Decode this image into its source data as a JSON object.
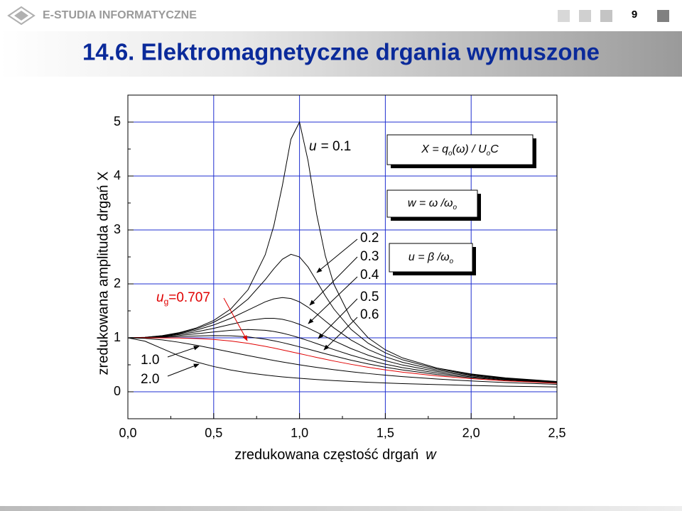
{
  "header": {
    "logo": "E-STUDIA INFORMATYCZNE",
    "page_number": "9",
    "title": "14.6. Elektromagnetyczne drgania wymuszone"
  },
  "chart_data": {
    "type": "line",
    "ylabel": "zredukowana amplituda drgań X",
    "xlabel": "zredukowana częstość drgań",
    "xlabel_symbol": "w",
    "xlim": [
      0,
      2.5
    ],
    "ylim": [
      -0.5,
      5.5
    ],
    "xticks": [
      {
        "value": 0,
        "label": "0,0"
      },
      {
        "value": 0.5,
        "label": "0,5"
      },
      {
        "value": 1,
        "label": "1,0"
      },
      {
        "value": 1.5,
        "label": "1,5"
      },
      {
        "value": 2,
        "label": "2,0"
      },
      {
        "value": 2.5,
        "label": "2,5"
      }
    ],
    "yticks": [
      0,
      1,
      2,
      3,
      4,
      5
    ],
    "xminorticks": [
      0.25,
      0.75,
      1.25,
      1.75,
      2.25
    ],
    "yminorticks": [
      -0.5,
      0.5,
      1.5,
      2.5,
      3.5,
      4.5,
      5.5
    ],
    "grid": true,
    "grid_color": "#1f2fd0",
    "x": [
      0,
      0.1,
      0.2,
      0.3,
      0.4,
      0.5,
      0.6,
      0.7,
      0.8,
      0.85,
      0.9,
      0.95,
      1.0,
      1.05,
      1.1,
      1.15,
      1.2,
      1.3,
      1.4,
      1.5,
      1.6,
      1.8,
      2.0,
      2.2,
      2.5
    ],
    "series": [
      {
        "name_prefix": "u",
        "name": "= 0.1",
        "color": "#000000",
        "values": [
          1,
          1.01,
          1.041,
          1.097,
          1.185,
          1.322,
          1.536,
          1.891,
          2.538,
          3.073,
          3.821,
          4.683,
          5.0,
          4.279,
          3.288,
          2.524,
          1.995,
          1.356,
          1.0,
          0.778,
          0.628,
          0.441,
          0.33,
          0.259,
          0.19
        ]
      },
      {
        "name": "0.2",
        "color": "#000000",
        "values": [
          1,
          1.009,
          1.038,
          1.089,
          1.169,
          1.288,
          1.463,
          1.719,
          2.076,
          2.279,
          2.457,
          2.549,
          2.5,
          2.313,
          2.051,
          1.78,
          1.536,
          1.157,
          0.9,
          0.721,
          0.593,
          0.425,
          0.322,
          0.254,
          0.187
        ]
      },
      {
        "name": "0.3",
        "color": "#000000",
        "values": [
          1,
          1.008,
          1.034,
          1.078,
          1.145,
          1.238,
          1.362,
          1.514,
          1.667,
          1.722,
          1.747,
          1.729,
          1.667,
          1.567,
          1.444,
          1.313,
          1.185,
          0.96,
          0.784,
          0.649,
          0.546,
          0.402,
          0.309,
          0.246,
          0.183
        ]
      },
      {
        "name": "0.4",
        "color": "#000000",
        "values": [
          1,
          1.007,
          1.027,
          1.063,
          1.112,
          1.176,
          1.25,
          1.32,
          1.362,
          1.362,
          1.343,
          1.305,
          1.25,
          1.182,
          1.105,
          1.026,
          0.947,
          0.801,
          0.678,
          0.577,
          0.496,
          0.376,
          0.294,
          0.237,
          0.178
        ]
      },
      {
        "name": "0.5",
        "color": "#000000",
        "values": [
          1,
          1.005,
          1.02,
          1.044,
          1.075,
          1.109,
          1.14,
          1.155,
          1.14,
          1.118,
          1.087,
          1.047,
          1.0,
          0.948,
          0.893,
          0.837,
          0.782,
          0.679,
          0.589,
          0.512,
          0.447,
          0.348,
          0.277,
          0.226,
          0.172
        ]
      },
      {
        "name": "0.6",
        "color": "#000000",
        "values": [
          1,
          1.003,
          1.011,
          1.022,
          1.034,
          1.041,
          1.038,
          1.018,
          0.975,
          0.946,
          0.912,
          0.874,
          0.833,
          0.791,
          0.748,
          0.706,
          0.664,
          0.586,
          0.517,
          0.456,
          0.404,
          0.321,
          0.26,
          0.215,
          0.165
        ]
      },
      {
        "name_prefix": "u",
        "name_sub": "g",
        "name": "=0.707",
        "color": "#e00000",
        "values": [
          1,
          1.0,
          0.999,
          0.996,
          0.987,
          0.97,
          0.941,
          0.898,
          0.842,
          0.811,
          0.777,
          0.742,
          0.707,
          0.672,
          0.637,
          0.603,
          0.57,
          0.509,
          0.454,
          0.406,
          0.364,
          0.295,
          0.243,
          0.202,
          0.158
        ]
      },
      {
        "name": "1.0",
        "color": "#000000",
        "values": [
          1,
          0.99,
          0.962,
          0.917,
          0.862,
          0.8,
          0.735,
          0.671,
          0.61,
          0.581,
          0.552,
          0.526,
          0.5,
          0.476,
          0.452,
          0.431,
          0.41,
          0.372,
          0.338,
          0.308,
          0.281,
          0.236,
          0.2,
          0.171,
          0.138
        ]
      },
      {
        "name": "2.0",
        "color": "#000000",
        "values": [
          1,
          0.937,
          0.8,
          0.664,
          0.553,
          0.468,
          0.403,
          0.351,
          0.311,
          0.293,
          0.277,
          0.263,
          0.25,
          0.238,
          0.227,
          0.217,
          0.207,
          0.191,
          0.176,
          0.163,
          0.152,
          0.133,
          0.117,
          0.104,
          0.089
        ]
      }
    ],
    "formula_boxes": [
      [
        "X = q",
        "o",
        "(ω) / U",
        "o",
        "C"
      ],
      [
        "w = ω /ω",
        "o"
      ],
      [
        "u = β /ω",
        "o"
      ]
    ]
  }
}
